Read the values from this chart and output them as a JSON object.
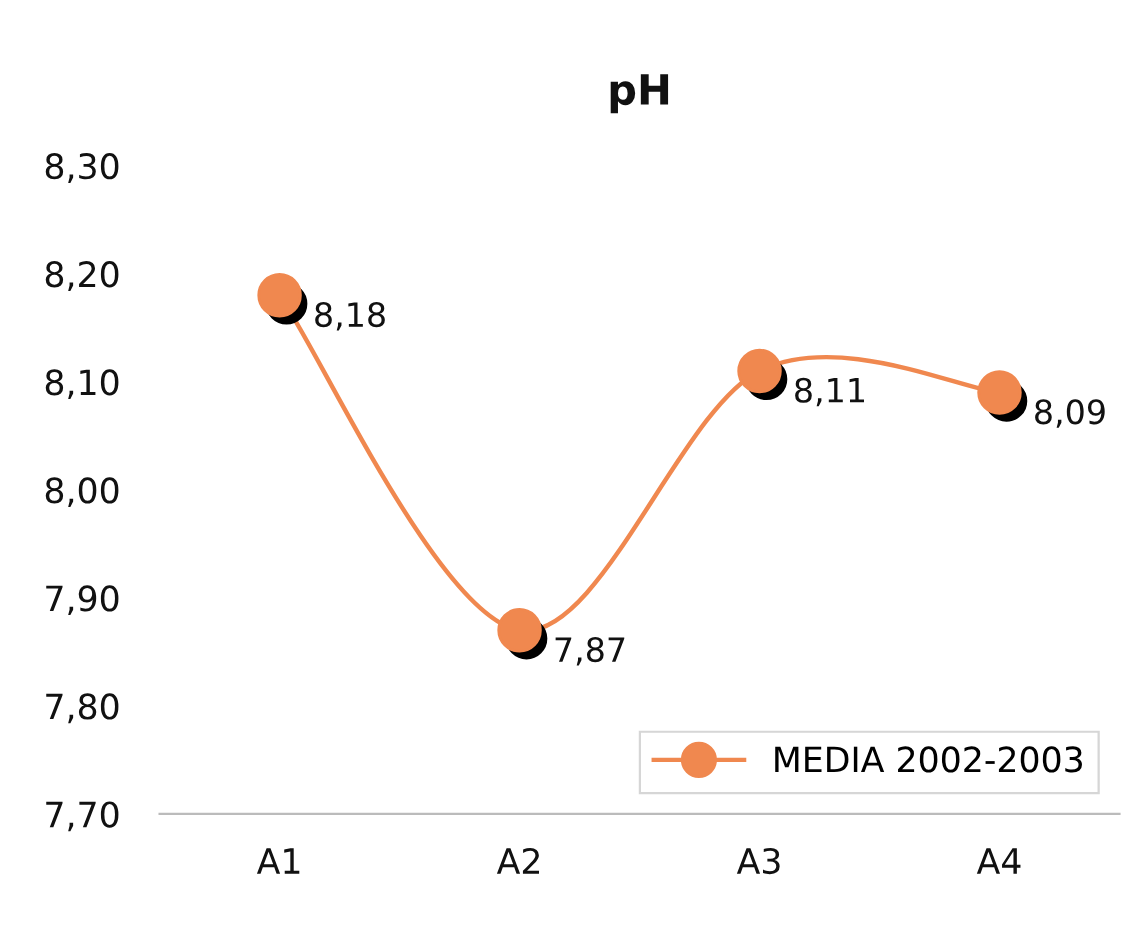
{
  "chart_data": {
    "type": "line",
    "title": "pH",
    "categories": [
      "A1",
      "A2",
      "A3",
      "A4"
    ],
    "series": [
      {
        "name": "MEDIA 2002-2003",
        "color": "#f0884f",
        "values": [
          8.18,
          7.87,
          8.11,
          8.09
        ],
        "value_labels": [
          "8,18",
          "7,87",
          "8,11",
          "8,09"
        ]
      }
    ],
    "ylim": [
      7.7,
      8.3
    ],
    "yticks": [
      {
        "value": 7.7,
        "label": "7,70"
      },
      {
        "value": 7.8,
        "label": "7,80"
      },
      {
        "value": 7.9,
        "label": "7,90"
      },
      {
        "value": 8.0,
        "label": "8,00"
      },
      {
        "value": 8.1,
        "label": "8,10"
      },
      {
        "value": 8.2,
        "label": "8,20"
      },
      {
        "value": 8.3,
        "label": "8,30"
      }
    ],
    "marker": "circle",
    "line_style": "solid",
    "legend": "bottom right"
  }
}
